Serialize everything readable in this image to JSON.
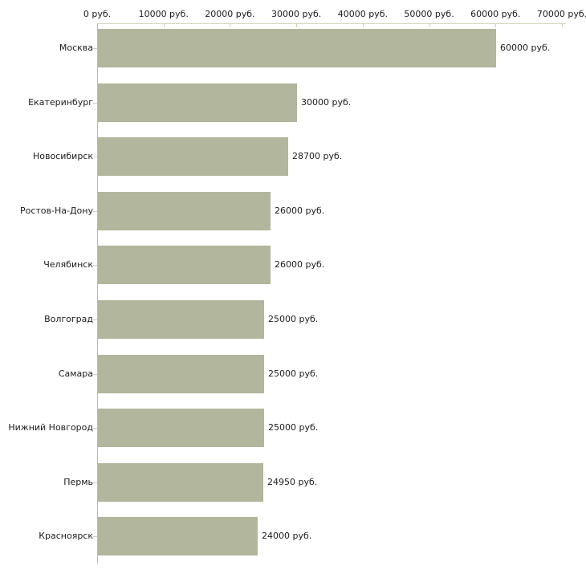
{
  "chart_data": {
    "type": "bar",
    "orientation": "horizontal",
    "title": "",
    "categories": [
      "Москва",
      "Екатеринбург",
      "Новосибирск",
      "Ростов-На-Дону",
      "Челябинск",
      "Волгоград",
      "Самара",
      "Нижний Новгород",
      "Пермь",
      "Красноярск"
    ],
    "values": [
      60000,
      30000,
      28700,
      26000,
      26000,
      25000,
      25000,
      25000,
      24950,
      24000
    ],
    "value_labels": [
      "60000 руб.",
      "30000 руб.",
      "28700 руб.",
      "26000 руб.",
      "26000 руб.",
      "25000 руб.",
      "25000 руб.",
      "25000 руб.",
      "24950 руб.",
      "24000 руб."
    ],
    "x_tick_labels": [
      "0 руб.",
      "10000 руб.",
      "20000 руб.",
      "30000 руб.",
      "40000 руб.",
      "50000 руб.",
      "60000 руб.",
      "70000 руб."
    ],
    "xlim": [
      0,
      70000
    ],
    "unit": "руб.",
    "grid": false,
    "legend": false,
    "colors": {
      "bar": "#b1b69c",
      "x_axis_line": "#d6d6be",
      "x_axis_tick": "#cfcfb2",
      "y_axis_line": "#b9b9b9",
      "category_tick": "#cdd1b8",
      "text": "#1c1c1c",
      "background": "#ffffff"
    }
  }
}
